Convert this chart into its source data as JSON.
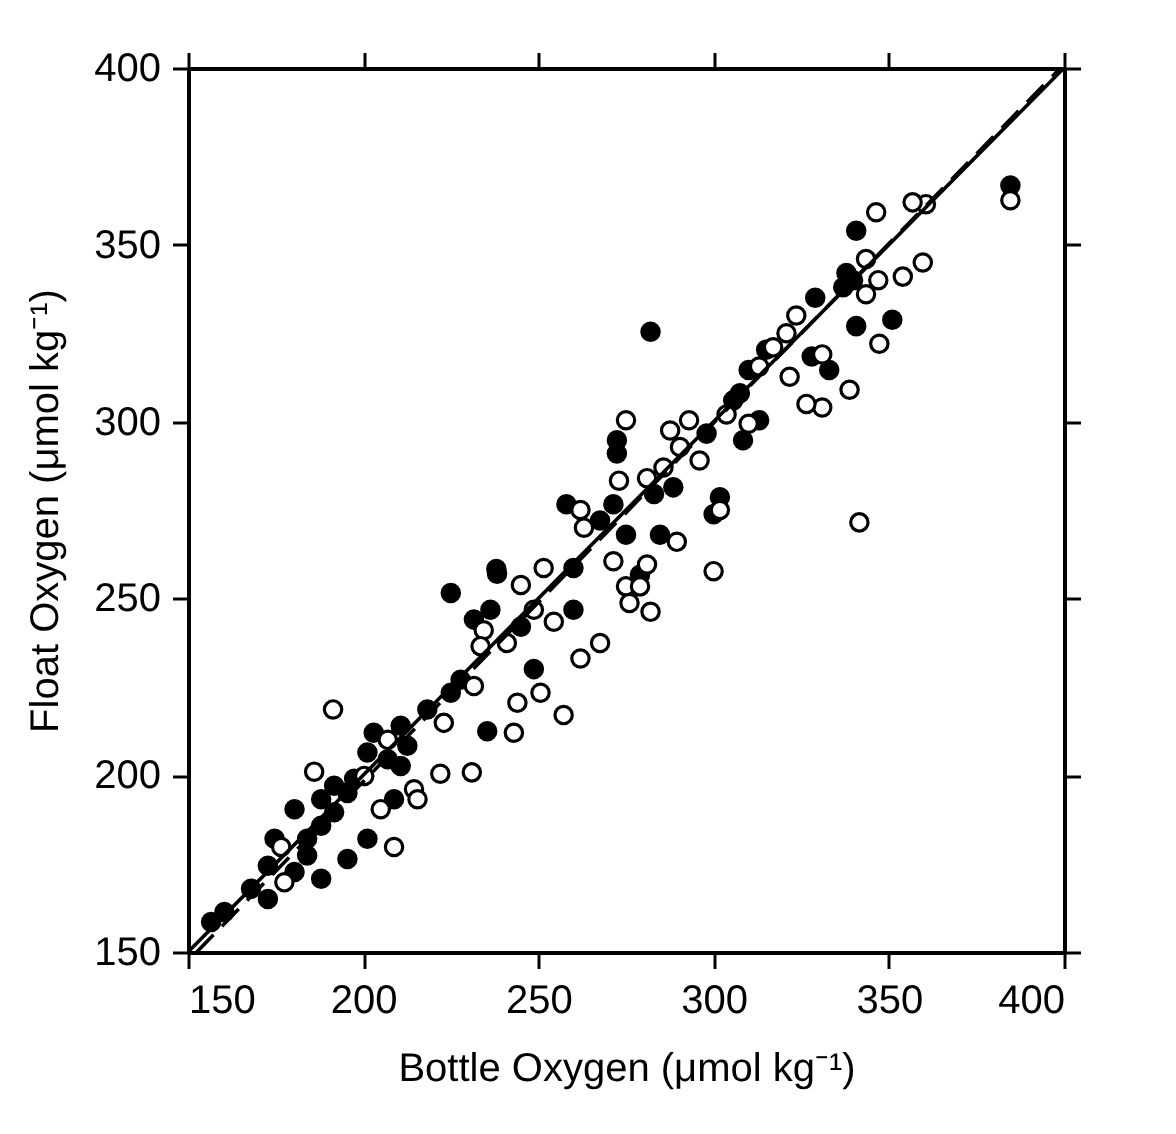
{
  "chart_data": {
    "type": "scatter",
    "xlabel": "Bottle Oxygen (μmol kg⁻¹)",
    "ylabel": "Float Oxygen (μmol kg⁻¹)",
    "xlim": [
      150,
      400
    ],
    "ylim": [
      150,
      400
    ],
    "xticks": [
      150,
      200,
      250,
      300,
      350,
      400
    ],
    "yticks": [
      150,
      200,
      250,
      300,
      350,
      400
    ],
    "grid": false,
    "series": [
      {
        "color": "#000000",
        "marker": "circle",
        "x": [
          384.7,
          340.7,
          337.9,
          339.8,
          337,
          351,
          329,
          340.7,
          333,
          328,
          315,
          310,
          307.5,
          305.6,
          313,
          298,
          308.4,
          282,
          272.4,
          272.4,
          300,
          301.8,
          258,
          271.4,
          275,
          283,
          288.5,
          284.7,
          267.6,
          238,
          260,
          279,
          225,
          235.4,
          238.2,
          231.6,
          236.3,
          245,
          248.7,
          260,
          227.8,
          225,
          218.3,
          210.7,
          203,
          207,
          197.4,
          195.5,
          180.4,
          188,
          191.7,
          184,
          195.5,
          201.2,
          174.7,
          172.8,
          180.4,
          188,
          172.8,
          168,
          160.4,
          156.6,
          201.2,
          191.7,
          210.7,
          212.6,
          208.8,
          184,
          188
        ],
        "values": [
          366.8,
          354,
          342,
          340,
          338,
          328.8,
          335,
          327,
          314.6,
          318.4,
          320.3,
          314.6,
          308,
          306,
          300.4,
          296.6,
          294.7,
          325.4,
          294.7,
          291,
          273.8,
          278.6,
          276.6,
          276.6,
          268,
          279.5,
          281.4,
          268,
          272,
          258.3,
          258.6,
          256.7,
          251.5,
          212.4,
          257,
          244,
          246.8,
          242,
          230,
          246.8,
          227,
          223.3,
          218.6,
          214,
          212,
          204.5,
          199,
          195,
          190.4,
          185.7,
          189.5,
          182,
          176.3,
          182,
          182,
          174.4,
          172.6,
          170.7,
          165,
          167.9,
          161.3,
          158.5,
          206.4,
          197,
          202.6,
          208.3,
          193.2,
          177.3,
          193.2
        ]
      },
      {
        "color": "#ffffff",
        "marker": "circle",
        "x": [
          384.7,
          360.6,
          346.4,
          356.8,
          359.7,
          354,
          347,
          343.5,
          343.5,
          347.3,
          338.8,
          331,
          326.5,
          341.6,
          321.7,
          331,
          323.6,
          320.8,
          313,
          317,
          310,
          303.7,
          296,
          293,
          287.6,
          275,
          290.4,
          273,
          281,
          285.7,
          262,
          263,
          289.5,
          301.8,
          300,
          281,
          271.4,
          251.5,
          275,
          279,
          276,
          282,
          267.6,
          262,
          257.2,
          250.6,
          244,
          243,
          254.4,
          248.7,
          245,
          234.4,
          233.5,
          241,
          231.6,
          223,
          207,
          222,
          231,
          191.4,
          186,
          214.5,
          215.5,
          205,
          208.8,
          176.6,
          177.5,
          200.3
        ],
        "values": [
          362.6,
          361.5,
          359.2,
          362,
          345,
          341,
          340,
          336,
          346,
          322,
          309,
          304,
          305,
          271.5,
          312.7,
          319,
          330,
          325,
          315.6,
          321,
          299.4,
          302,
          289,
          300.4,
          297.5,
          300.4,
          292.8,
          283.3,
          284,
          287,
          275,
          270,
          266,
          275,
          257.7,
          259.6,
          260.5,
          258.6,
          253.4,
          253.4,
          248.7,
          246.2,
          237.4,
          233,
          217,
          223.3,
          220.5,
          212,
          243.4,
          246.8,
          253.8,
          241,
          236.5,
          237.4,
          225.2,
          214.8,
          210,
          200.4,
          200.8,
          218.6,
          201,
          196,
          193.2,
          190.4,
          179.7,
          179.7,
          169.7,
          199.8
        ]
      },
      {
        "type": "line",
        "color": "#000000",
        "line_style": "solid",
        "x": [
          150,
          400
        ],
        "values": [
          150,
          400
        ]
      },
      {
        "type": "line",
        "color": "#000000",
        "line_style": "dashed",
        "x": [
          152.5,
          399
        ],
        "values": [
          150,
          400
        ]
      }
    ]
  }
}
